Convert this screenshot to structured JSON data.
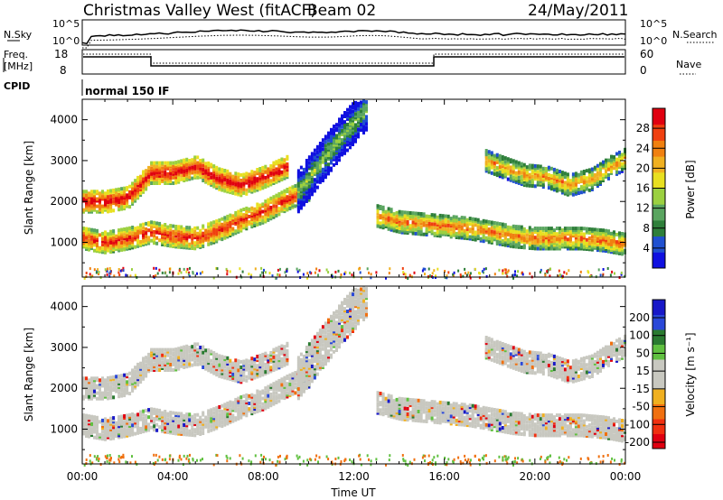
{
  "header": {
    "title": "Christmas Valley West (fitACF)",
    "beam": "Beam 02",
    "date": "24/May/2011"
  },
  "strip_labels": {
    "nsky": "N.Sky",
    "nsearch": "N.Search",
    "freq_line1": "Freq.",
    "freq_line2": "[MHz]",
    "nave": "Nave",
    "cpid": "CPID",
    "cpid_value": "normal 150 IF"
  },
  "strip_axes": {
    "nsky_top": "10^5",
    "nsky_bottom": "10^0",
    "freq_top": "18",
    "freq_bottom": "8",
    "nave_top": "60",
    "nave_bottom": "0"
  },
  "colors": {
    "power_scale": [
      "#1010e0",
      "#2050d0",
      "#2e7f3a",
      "#5aa560",
      "#9bd040",
      "#e8e020",
      "#f0b020",
      "#f08010",
      "#f04010",
      "#e00010"
    ],
    "velocity_scale": [
      "#1818c8",
      "#2a48d8",
      "#2a7a30",
      "#60c040",
      "#c8c8c0",
      "#c8c8c0",
      "#f0b020",
      "#f07010",
      "#f03010",
      "#e00010"
    ]
  },
  "chart_data": [
    {
      "type": "heatmap",
      "name": "Power panel",
      "ylabel": "Slant Range [km]",
      "colorbar_label": "Power [dB]",
      "colorbar_ticks": [
        "4",
        "8",
        "12",
        "16",
        "20",
        "24",
        "28"
      ],
      "colorbar_range": [
        0,
        32
      ],
      "yticks": [
        "1000",
        "2000",
        "3000",
        "4000"
      ],
      "ylim": [
        150,
        4500
      ],
      "bands": [
        {
          "name": "morning-lower",
          "t": [
            0,
            1,
            2,
            3,
            4,
            5,
            6,
            7,
            8,
            9,
            10
          ],
          "r": [
            1150,
            1050,
            1150,
            1300,
            1200,
            1150,
            1350,
            1600,
            1800,
            2100,
            2350
          ],
          "value": 22
        },
        {
          "name": "morning-upper",
          "t": [
            0,
            1,
            2,
            3,
            4,
            5,
            6,
            7,
            8,
            9
          ],
          "r": [
            2050,
            2050,
            2150,
            2750,
            2750,
            2900,
            2600,
            2450,
            2650,
            2900
          ],
          "value": 24
        },
        {
          "name": "near-plume",
          "t": [
            9.5,
            10.5,
            11.5,
            12.5
          ],
          "r": [
            2300,
            3000,
            3700,
            4300
          ],
          "value": 6
        },
        {
          "name": "afternoon-lower",
          "t": [
            13,
            14,
            15,
            16,
            17,
            18,
            19,
            20,
            21,
            22,
            23,
            24
          ],
          "r": [
            1700,
            1550,
            1500,
            1450,
            1400,
            1300,
            1200,
            1150,
            1150,
            1150,
            1100,
            1000
          ],
          "value": 18
        },
        {
          "name": "evening-upper",
          "t": [
            17.8,
            18.5,
            19.5,
            20.5,
            21.5,
            22.5,
            23.3,
            24
          ],
          "r": [
            3050,
            2900,
            2700,
            2650,
            2450,
            2600,
            2900,
            3100
          ],
          "value": 16
        }
      ]
    },
    {
      "type": "heatmap",
      "name": "Velocity panel",
      "ylabel": "Slant Range [km]",
      "xlabel": "Time UT",
      "colorbar_label": "Velocity [m s⁻¹]",
      "colorbar_ticks": [
        "200",
        "100",
        "50",
        "15",
        "-15",
        "-50",
        "-100",
        "-200"
      ],
      "xticks": [
        "00:00",
        "04:00",
        "08:00",
        "12:00",
        "16:00",
        "20:00",
        "00:00"
      ],
      "yticks": [
        "1000",
        "2000",
        "3000",
        "4000"
      ],
      "ylim": [
        150,
        4500
      ],
      "dominant_value": 0
    }
  ]
}
